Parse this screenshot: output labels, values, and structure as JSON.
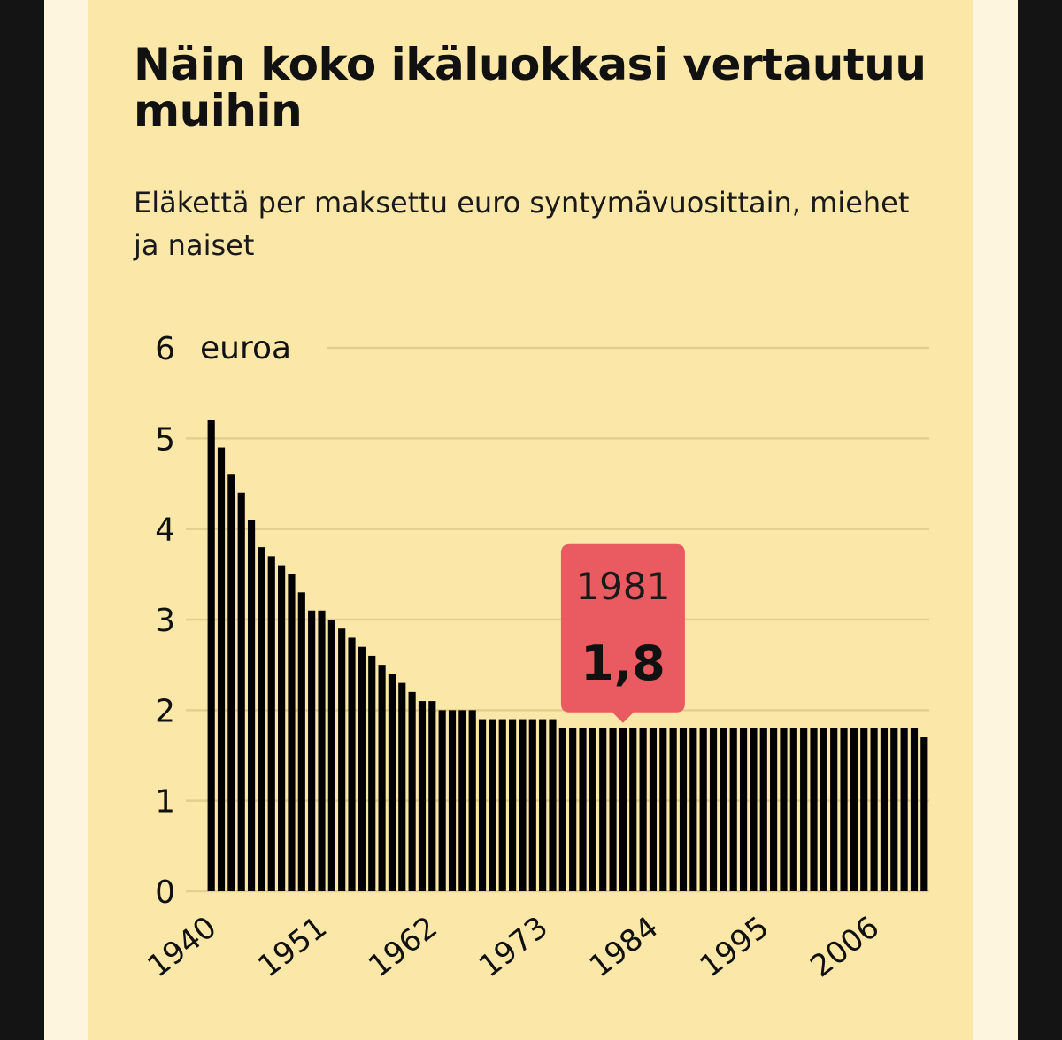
{
  "header": {
    "title": "Näin koko ikäluokkasi vertautuu muihin",
    "subtitle": "Eläkettä per maksettu euro syntymävuosittain, miehet ja naiset"
  },
  "colors": {
    "background": "#fbe8a9",
    "bar": "#000000",
    "grid": "#e3d08f",
    "tooltip": "#e95b60"
  },
  "chart_data": {
    "type": "bar",
    "title": "Näin koko ikäluokkasi vertautuu muihin",
    "subtitle": "Eläkettä per maksettu euro syntymävuosittain, miehet ja naiset",
    "ylabel": "euroa",
    "xlabel": "",
    "ylim": [
      0,
      6
    ],
    "yticks": [
      "0",
      "1",
      "2",
      "3",
      "4",
      "5",
      "6"
    ],
    "x_tick_labels": [
      "1940",
      "1951",
      "1962",
      "1973",
      "1984",
      "1995",
      "2006"
    ],
    "grid": true,
    "categories": [
      1940,
      1941,
      1942,
      1943,
      1944,
      1945,
      1946,
      1947,
      1948,
      1949,
      1950,
      1951,
      1952,
      1953,
      1954,
      1955,
      1956,
      1957,
      1958,
      1959,
      1960,
      1961,
      1962,
      1963,
      1964,
      1965,
      1966,
      1967,
      1968,
      1969,
      1970,
      1971,
      1972,
      1973,
      1974,
      1975,
      1976,
      1977,
      1978,
      1979,
      1980,
      1981,
      1982,
      1983,
      1984,
      1985,
      1986,
      1987,
      1988,
      1989,
      1990,
      1991,
      1992,
      1993,
      1994,
      1995,
      1996,
      1997,
      1998,
      1999,
      2000,
      2001,
      2002,
      2003,
      2004,
      2005,
      2006,
      2007,
      2008,
      2009,
      2010,
      2011
    ],
    "values": [
      5.2,
      4.9,
      4.6,
      4.4,
      4.1,
      3.8,
      3.7,
      3.6,
      3.5,
      3.3,
      3.1,
      3.1,
      3.0,
      2.9,
      2.8,
      2.7,
      2.6,
      2.5,
      2.4,
      2.3,
      2.2,
      2.1,
      2.1,
      2.0,
      2.0,
      2.0,
      2.0,
      1.9,
      1.9,
      1.9,
      1.9,
      1.9,
      1.9,
      1.9,
      1.9,
      1.8,
      1.8,
      1.8,
      1.8,
      1.8,
      1.8,
      1.8,
      1.8,
      1.8,
      1.8,
      1.8,
      1.8,
      1.8,
      1.8,
      1.8,
      1.8,
      1.8,
      1.8,
      1.8,
      1.8,
      1.8,
      1.8,
      1.8,
      1.8,
      1.8,
      1.8,
      1.8,
      1.8,
      1.8,
      1.8,
      1.8,
      1.8,
      1.8,
      1.8,
      1.8,
      1.8,
      1.7
    ],
    "annotation": {
      "year": "1981",
      "value": "1,8"
    }
  }
}
